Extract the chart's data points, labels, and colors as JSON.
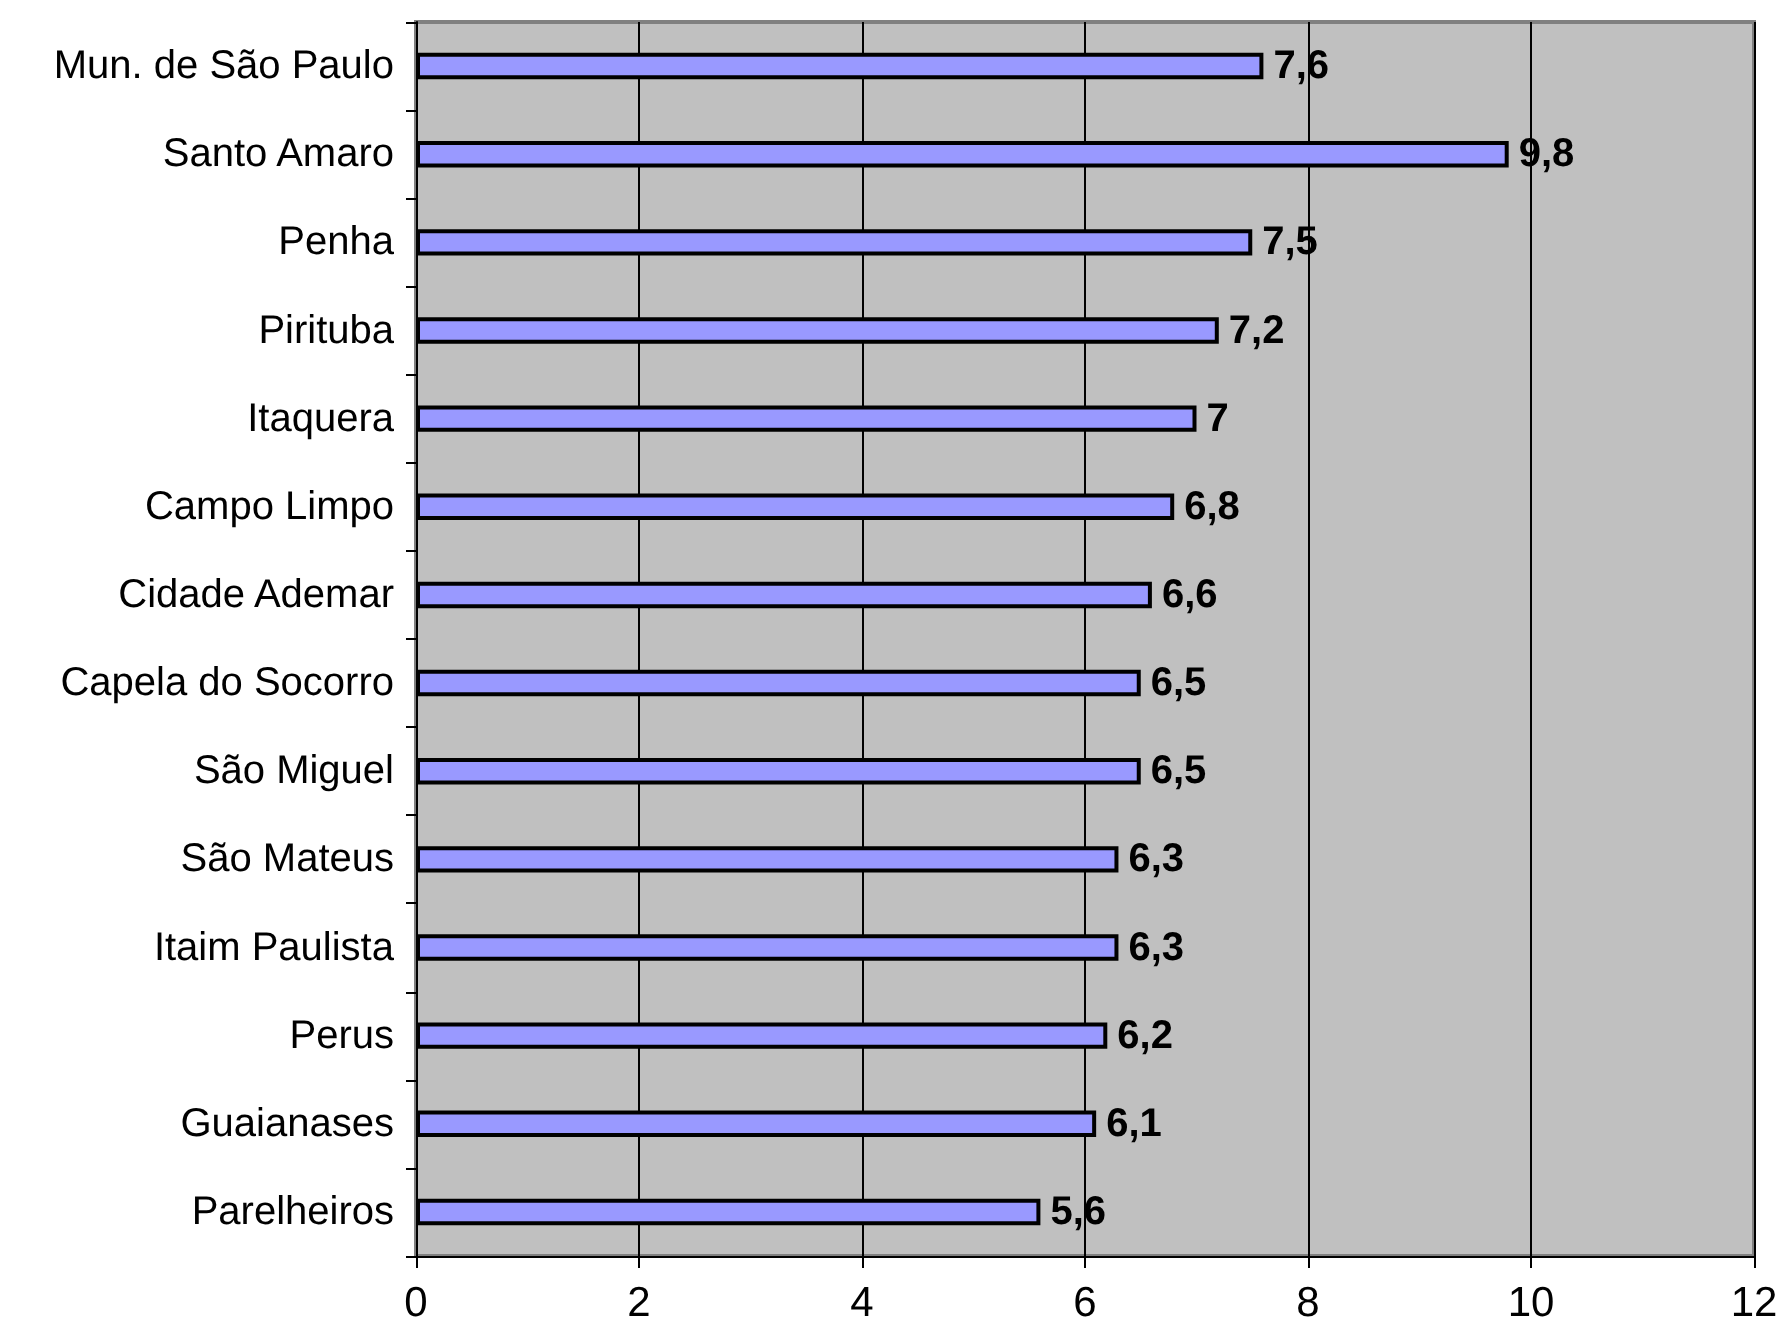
{
  "chart_data": {
    "type": "bar",
    "orientation": "horizontal",
    "categories": [
      "Mun. de São Paulo",
      "Santo Amaro",
      "Penha",
      "Pirituba",
      "Itaquera",
      "Campo Limpo",
      "Cidade Ademar",
      "Capela do Socorro",
      "São Miguel",
      "São Mateus",
      "Itaim Paulista",
      "Perus",
      "Guaianases",
      "Parelheiros"
    ],
    "values": [
      7.6,
      9.8,
      7.5,
      7.2,
      7,
      6.8,
      6.6,
      6.5,
      6.5,
      6.3,
      6.3,
      6.2,
      6.1,
      5.6
    ],
    "value_labels": [
      "7,6",
      "9,8",
      "7,5",
      "7,2",
      "7",
      "6,8",
      "6,6",
      "6,5",
      "6,5",
      "6,3",
      "6,3",
      "6,2",
      "6,1",
      "5,6"
    ],
    "color": "#9999ff",
    "xlim": [
      0,
      12
    ],
    "xticks": [
      0,
      2,
      4,
      6,
      8,
      10,
      12
    ],
    "grid": "x"
  }
}
